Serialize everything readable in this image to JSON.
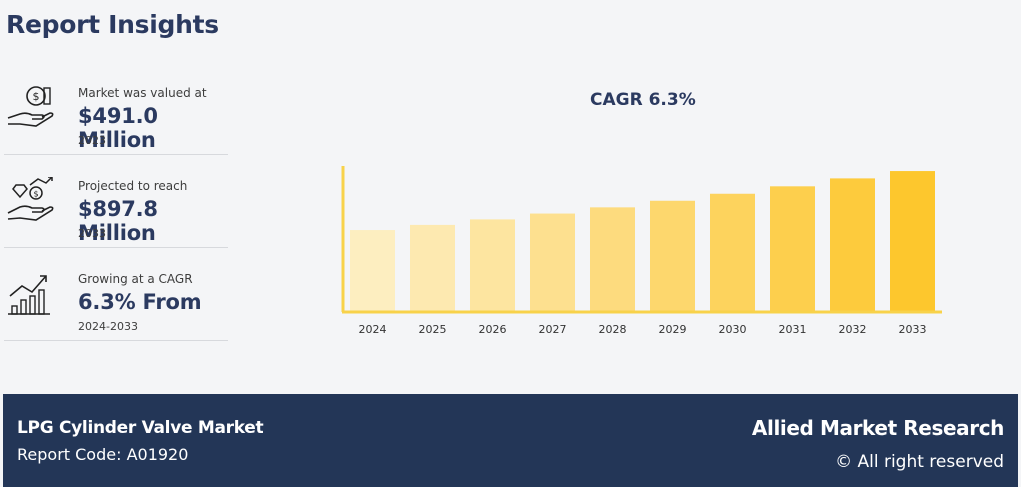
{
  "header": {
    "title": "Report Insights"
  },
  "stats": [
    {
      "label": "Market was valued at",
      "value": "$491.0 Million",
      "sub": "2023",
      "icon": "money-hand-icon"
    },
    {
      "label": "Projected to reach",
      "value": "$897.8 Million",
      "sub": "2033",
      "icon": "diamond-growth-icon"
    },
    {
      "label": "Growing at a CAGR",
      "value": "6.3% From",
      "sub": "2024-2033",
      "icon": "bar-growth-icon"
    }
  ],
  "chart_data": {
    "type": "bar",
    "title": "CAGR 6.3%",
    "categories": [
      "2024",
      "2025",
      "2026",
      "2027",
      "2028",
      "2029",
      "2030",
      "2031",
      "2032",
      "2033"
    ],
    "values": [
      522.0,
      554.9,
      589.9,
      627.1,
      666.6,
      708.6,
      753.2,
      800.6,
      851.1,
      897.8
    ],
    "xlabel": "",
    "ylabel": "",
    "ylim": [
      0,
      930
    ],
    "grid": false,
    "colors": [
      "#fdeec0",
      "#fde9b0",
      "#fde5a0",
      "#fde08f",
      "#fddb7e",
      "#fdd76d",
      "#fdd35d",
      "#fdcf4d",
      "#fdcb3d",
      "#fdc72d"
    ],
    "axis_color": "#f8d24a"
  },
  "footer": {
    "market": "LPG Cylinder Valve Market",
    "code": "Report Code: A01920",
    "brand": "Allied Market Research",
    "rights": "© All right reserved"
  }
}
